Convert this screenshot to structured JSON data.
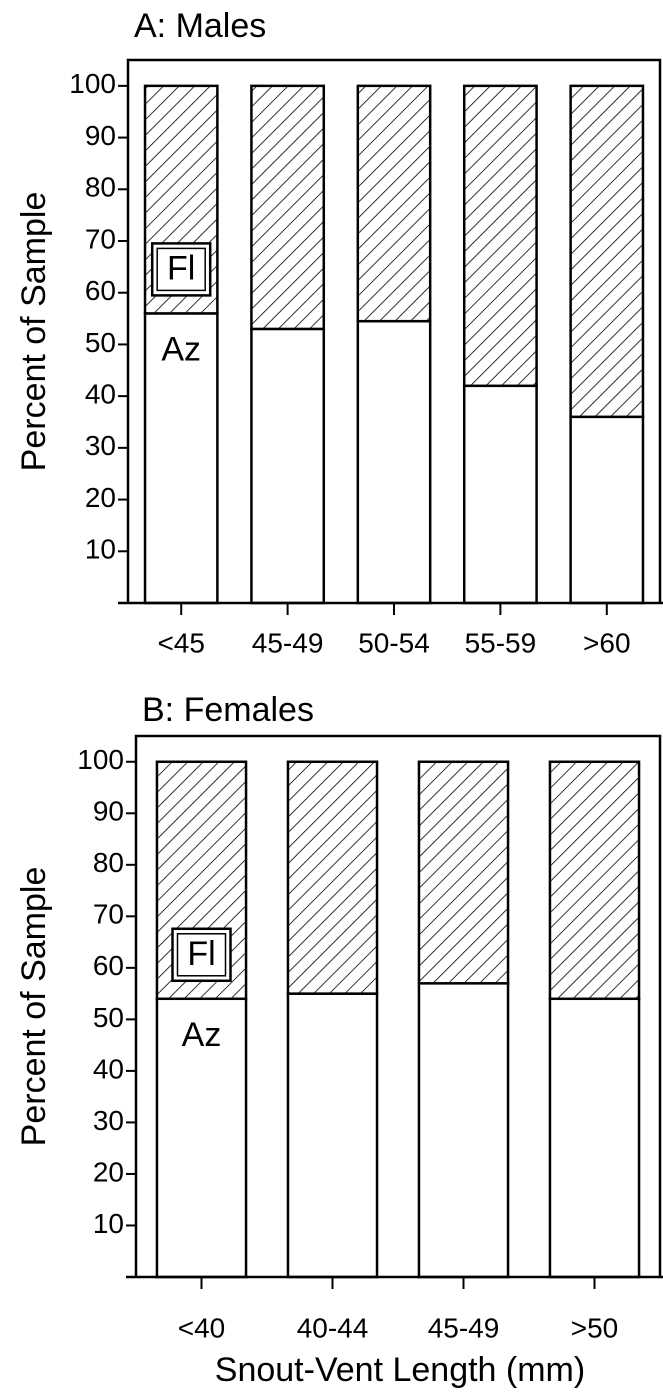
{
  "chart_data": [
    {
      "type": "stacked-bar",
      "title": "A:  Males",
      "y_label": "Percent of Sample",
      "categories": [
        "<45",
        "45-49",
        "50-54",
        "55-59",
        ">60"
      ],
      "series": [
        {
          "name": "Az",
          "color": "#ffffff",
          "values": [
            56,
            53,
            54.5,
            42,
            36
          ]
        },
        {
          "name": "Fl",
          "color": "#000000",
          "hatch": true,
          "values": [
            44,
            47,
            45.5,
            58,
            64
          ]
        }
      ],
      "ylim": [
        0,
        105
      ],
      "yticks": [
        10,
        20,
        30,
        40,
        50,
        60,
        70,
        80,
        90,
        100
      ]
    },
    {
      "type": "stacked-bar",
      "title": "B:  Females",
      "y_label": "Percent of Sample",
      "x_label": "Snout-Vent Length (mm)",
      "categories": [
        "<40",
        "40-44",
        "45-49",
        ">50"
      ],
      "series": [
        {
          "name": "Az",
          "color": "#ffffff",
          "values": [
            54,
            55,
            57,
            54
          ]
        },
        {
          "name": "Fl",
          "color": "#000000",
          "hatch": true,
          "values": [
            46,
            45,
            43,
            46
          ]
        }
      ],
      "ylim": [
        0,
        105
      ],
      "yticks": [
        10,
        20,
        30,
        40,
        50,
        60,
        70,
        80,
        90,
        100
      ]
    }
  ]
}
